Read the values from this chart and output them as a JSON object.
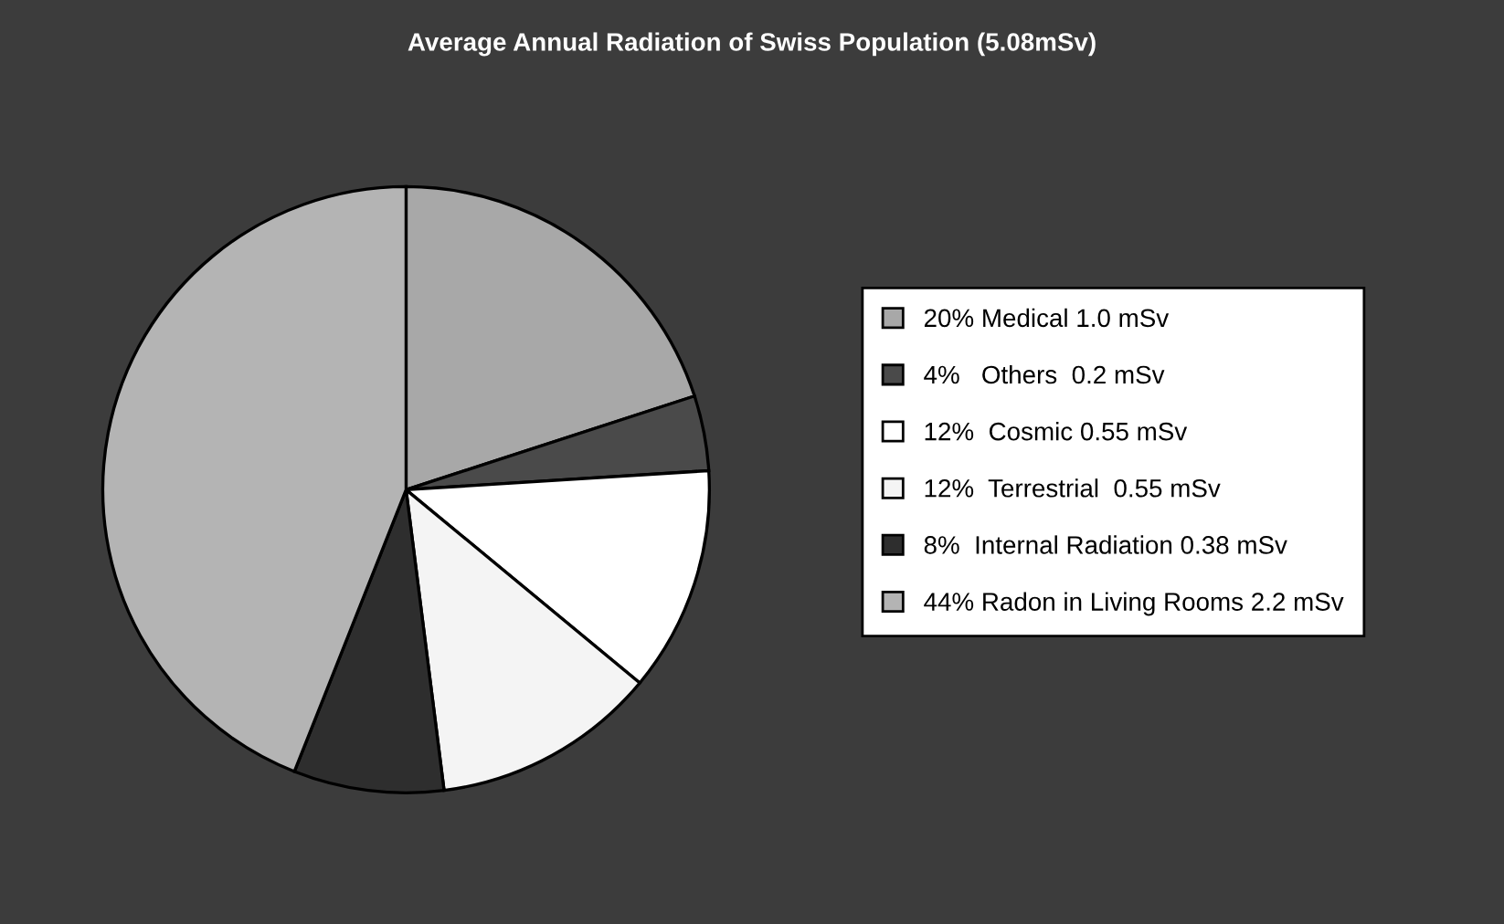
{
  "chart_data": {
    "type": "pie",
    "title": "Average Annual Radiation of Swiss Population (5.08mSv)",
    "categories": [
      "20% Medical 1.0 mSv",
      "4%   Others  0.2 mSv",
      "12%  Cosmic 0.55 mSv",
      "12%  Terrestrial  0.55 mSv",
      "8%  Internal Radiation 0.38 mSv",
      "44% Radon in Living Rooms 2.2 mSv"
    ],
    "values": [
      20,
      4,
      12,
      12,
      8,
      44
    ],
    "colors": [
      "#a8a8a8",
      "#4a4a4a",
      "#ffffff",
      "#f4f4f4",
      "#2e2e2e",
      "#b4b4b4"
    ],
    "legend": "right"
  }
}
